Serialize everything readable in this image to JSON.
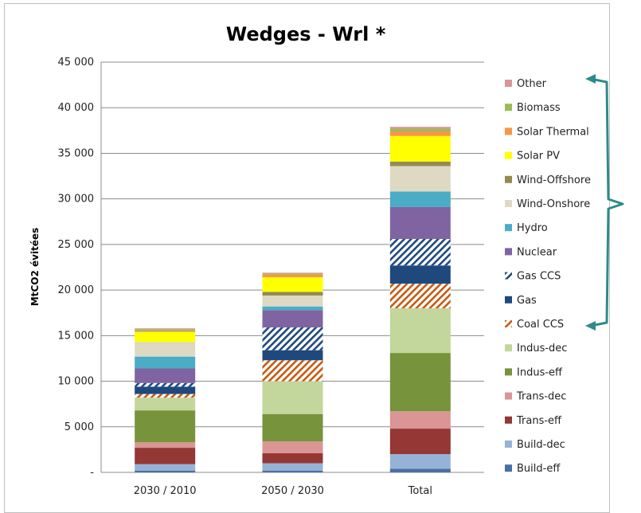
{
  "chart_data": {
    "type": "bar",
    "stacked": true,
    "title": "Wedges - Wrl *",
    "xlabel": "",
    "ylabel": "MtCO2 évitées",
    "ylim": [
      0,
      45000
    ],
    "yticks": [
      0,
      5000,
      10000,
      15000,
      20000,
      25000,
      30000,
      35000,
      40000,
      45000
    ],
    "ytick_labels": [
      "-",
      "5 000",
      "10 000",
      "15 000",
      "20 000",
      "25 000",
      "30 000",
      "35 000",
      "40 000",
      "45 000"
    ],
    "categories": [
      "2030 / 2010",
      "2050 / 2030",
      "Total"
    ],
    "grid": true,
    "legend_position": "right",
    "series": [
      {
        "name": "Build-eff",
        "color": "#4a6fa5",
        "pattern": "solid",
        "values": [
          200,
          200,
          400
        ]
      },
      {
        "name": "Build-dec",
        "color": "#95b3d7",
        "pattern": "solid",
        "values": [
          700,
          800,
          1600
        ]
      },
      {
        "name": "Trans-eff",
        "color": "#953735",
        "pattern": "solid",
        "values": [
          1800,
          1100,
          2800
        ]
      },
      {
        "name": "Trans-dec",
        "color": "#d99694",
        "pattern": "solid",
        "values": [
          600,
          1300,
          1900
        ]
      },
      {
        "name": "Indus-eff",
        "color": "#77933c",
        "pattern": "solid",
        "values": [
          3500,
          3000,
          6400
        ]
      },
      {
        "name": "Indus-dec",
        "color": "#c3d69b",
        "pattern": "solid",
        "values": [
          1400,
          3600,
          4900
        ]
      },
      {
        "name": "Coal CCS",
        "color": "#c55a11",
        "pattern": "hatch",
        "values": [
          400,
          2300,
          2700
        ]
      },
      {
        "name": "Gas",
        "color": "#1f497d",
        "pattern": "solid",
        "values": [
          800,
          1100,
          2000
        ]
      },
      {
        "name": "Gas CCS",
        "color": "#1f497d",
        "pattern": "hatch",
        "values": [
          400,
          2500,
          2900
        ]
      },
      {
        "name": "Nuclear",
        "color": "#8064a2",
        "pattern": "solid",
        "values": [
          1600,
          1900,
          3500
        ]
      },
      {
        "name": "Hydro",
        "color": "#4bacc6",
        "pattern": "solid",
        "values": [
          1300,
          400,
          1700
        ]
      },
      {
        "name": "Wind-Onshore",
        "color": "#ddd9c3",
        "pattern": "solid",
        "values": [
          1600,
          1200,
          2800
        ]
      },
      {
        "name": "Wind-Offshore",
        "color": "#948a54",
        "pattern": "solid",
        "values": [
          0,
          400,
          500
        ]
      },
      {
        "name": "Solar PV",
        "color": "#ffff00",
        "pattern": "solid",
        "values": [
          1100,
          1600,
          2800
        ]
      },
      {
        "name": "Solar Thermal",
        "color": "#f79646",
        "pattern": "solid",
        "values": [
          100,
          300,
          500
        ]
      },
      {
        "name": "Biomass",
        "color": "#9bbb59",
        "pattern": "solid",
        "values": [
          200,
          100,
          300
        ]
      },
      {
        "name": "Other",
        "color": "#d99694",
        "pattern": "solid",
        "values": [
          100,
          100,
          200
        ]
      }
    ]
  },
  "legend_annotation": {
    "color": "#2e8b8b"
  }
}
